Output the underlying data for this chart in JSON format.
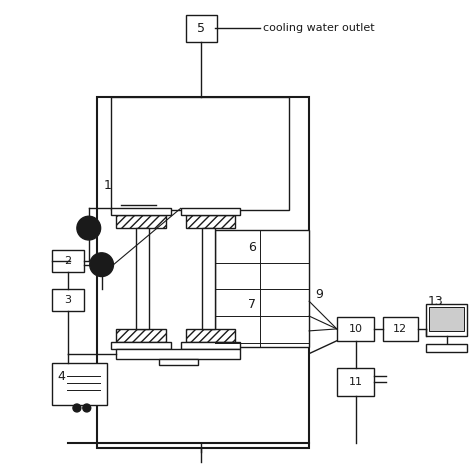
{
  "fig_width": 4.74,
  "fig_height": 4.74,
  "dpi": 100,
  "bg_color": "#ffffff",
  "line_color": "#1a1a1a",
  "annotation_text": "cooling water outlet"
}
